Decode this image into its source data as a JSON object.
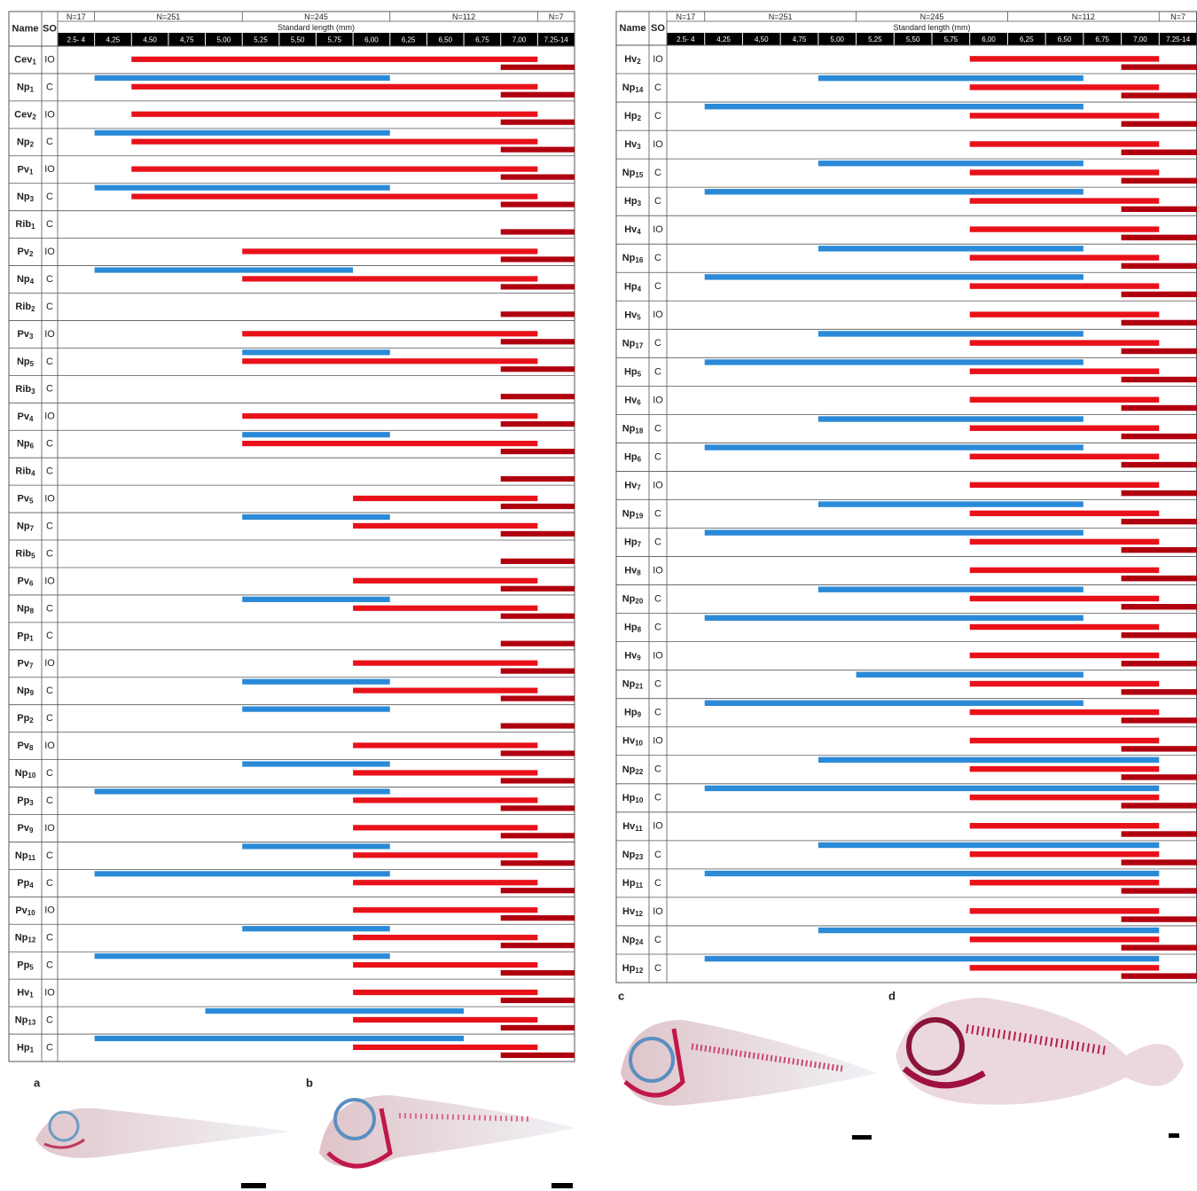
{
  "bar_colors": {
    "blue": "#2b8ad8",
    "red": "#e8111a",
    "dark": "#b0000f"
  },
  "tables": [
    {
      "header": {
        "name": "Name",
        "so": "SO"
      },
      "n_groups": [
        "N=17",
        "N=251",
        "N=245",
        "N=112",
        "N=7"
      ],
      "axis_label": "Standard length (mm)",
      "columns": [
        "2.5- 4",
        "4,25",
        "4,50",
        "4,75",
        "5,00",
        "5,25",
        "5,50",
        "5,75",
        "6,00",
        "6,25",
        "6,50",
        "6,75",
        "7,00",
        "7.25-14"
      ],
      "rows": [
        {
          "name": "Cev",
          "sub": "1",
          "so": "IO",
          "red": [
            2,
            12
          ],
          "dark": [
            12,
            13
          ]
        },
        {
          "name": "Np",
          "sub": "1",
          "so": "C",
          "blue": [
            1,
            8
          ],
          "red": [
            2,
            12
          ],
          "dark": [
            12,
            13
          ]
        },
        {
          "name": "Cev",
          "sub": "2",
          "so": "IO",
          "red": [
            2,
            12
          ],
          "dark": [
            12,
            13
          ]
        },
        {
          "name": "Np",
          "sub": "2",
          "so": "C",
          "blue": [
            1,
            8
          ],
          "red": [
            2,
            12
          ],
          "dark": [
            12,
            13
          ]
        },
        {
          "name": "Pv",
          "sub": "1",
          "so": "IO",
          "red": [
            2,
            12
          ],
          "dark": [
            12,
            13
          ]
        },
        {
          "name": "Np",
          "sub": "3",
          "so": "C",
          "blue": [
            1,
            8
          ],
          "red": [
            2,
            12
          ],
          "dark": [
            12,
            13
          ]
        },
        {
          "name": "Rib",
          "sub": "1",
          "so": "C",
          "dark": [
            12,
            13
          ]
        },
        {
          "name": "Pv",
          "sub": "2",
          "so": "IO",
          "red": [
            5,
            12
          ],
          "dark": [
            12,
            13
          ]
        },
        {
          "name": "Np",
          "sub": "4",
          "so": "C",
          "blue": [
            1,
            7
          ],
          "red": [
            5,
            12
          ],
          "dark": [
            12,
            13
          ]
        },
        {
          "name": "Rib",
          "sub": "2",
          "so": "C",
          "dark": [
            12,
            13
          ]
        },
        {
          "name": "Pv",
          "sub": "3",
          "so": "IO",
          "red": [
            5,
            12
          ],
          "dark": [
            12,
            13
          ]
        },
        {
          "name": "Np",
          "sub": "5",
          "so": "C",
          "blue": [
            5,
            8
          ],
          "red": [
            5,
            12
          ],
          "dark": [
            12,
            13
          ]
        },
        {
          "name": "Rib",
          "sub": "3",
          "so": "C",
          "dark": [
            12,
            13
          ]
        },
        {
          "name": "Pv",
          "sub": "4",
          "so": "IO",
          "red": [
            5,
            12
          ],
          "dark": [
            12,
            13
          ]
        },
        {
          "name": "Np",
          "sub": "6",
          "so": "C",
          "blue": [
            5,
            8
          ],
          "red": [
            5,
            12
          ],
          "dark": [
            12,
            13
          ]
        },
        {
          "name": "Rib",
          "sub": "4",
          "so": "C",
          "dark": [
            12,
            13
          ]
        },
        {
          "name": "Pv",
          "sub": "5",
          "so": "IO",
          "red": [
            8,
            12
          ],
          "dark": [
            12,
            13
          ]
        },
        {
          "name": "Np",
          "sub": "7",
          "so": "C",
          "blue": [
            5,
            8
          ],
          "red": [
            8,
            12
          ],
          "dark": [
            12,
            13
          ]
        },
        {
          "name": "Rib",
          "sub": "5",
          "so": "C",
          "dark": [
            12,
            13
          ]
        },
        {
          "name": "Pv",
          "sub": "6",
          "so": "IO",
          "red": [
            8,
            12
          ],
          "dark": [
            12,
            13
          ]
        },
        {
          "name": "Np",
          "sub": "8",
          "so": "C",
          "blue": [
            5,
            8
          ],
          "red": [
            8,
            12
          ],
          "dark": [
            12,
            13
          ]
        },
        {
          "name": "Pp",
          "sub": "1",
          "so": "C",
          "dark": [
            12,
            13
          ]
        },
        {
          "name": "Pv",
          "sub": "7",
          "so": "IO",
          "red": [
            8,
            12
          ],
          "dark": [
            12,
            13
          ]
        },
        {
          "name": "Np",
          "sub": "9",
          "so": "C",
          "blue": [
            5,
            8
          ],
          "red": [
            8,
            12
          ],
          "dark": [
            12,
            13
          ]
        },
        {
          "name": "Pp",
          "sub": "2",
          "so": "C",
          "blue": [
            5,
            8
          ],
          "dark": [
            12,
            13
          ]
        },
        {
          "name": "Pv",
          "sub": "8",
          "so": "IO",
          "red": [
            8,
            12
          ],
          "dark": [
            12,
            13
          ]
        },
        {
          "name": "Np",
          "sub": "10",
          "so": "C",
          "blue": [
            5,
            8
          ],
          "red": [
            8,
            12
          ],
          "dark": [
            12,
            13
          ]
        },
        {
          "name": "Pp",
          "sub": "3",
          "so": "C",
          "blue": [
            1,
            8
          ],
          "red": [
            8,
            12
          ],
          "dark": [
            12,
            13
          ]
        },
        {
          "name": "Pv",
          "sub": "9",
          "so": "IO",
          "red": [
            8,
            12
          ],
          "dark": [
            12,
            13
          ]
        },
        {
          "name": "Np",
          "sub": "11",
          "so": "C",
          "blue": [
            5,
            8
          ],
          "red": [
            8,
            12
          ],
          "dark": [
            12,
            13
          ]
        },
        {
          "name": "Pp",
          "sub": "4",
          "so": "C",
          "blue": [
            1,
            8
          ],
          "red": [
            8,
            12
          ],
          "dark": [
            12,
            13
          ]
        },
        {
          "name": "Pv",
          "sub": "10",
          "so": "IO",
          "red": [
            8,
            12
          ],
          "dark": [
            12,
            13
          ]
        },
        {
          "name": "Np",
          "sub": "12",
          "so": "C",
          "blue": [
            5,
            8
          ],
          "red": [
            8,
            12
          ],
          "dark": [
            12,
            13
          ]
        },
        {
          "name": "Pp",
          "sub": "5",
          "so": "C",
          "blue": [
            1,
            8
          ],
          "red": [
            8,
            12
          ],
          "dark": [
            12,
            13
          ]
        },
        {
          "name": "Hv",
          "sub": "1",
          "so": "IO",
          "red": [
            8,
            12
          ],
          "dark": [
            12,
            13
          ]
        },
        {
          "name": "Np",
          "sub": "13",
          "so": "C",
          "blue": [
            4,
            10
          ],
          "red": [
            8,
            12
          ],
          "dark": [
            12,
            13
          ]
        },
        {
          "name": "Hp",
          "sub": "1",
          "so": "C",
          "blue": [
            1,
            10
          ],
          "red": [
            8,
            12
          ],
          "dark": [
            12,
            13
          ]
        }
      ]
    },
    {
      "header": {
        "name": "Name",
        "so": "SO"
      },
      "n_groups": [
        "N=17",
        "N=251",
        "N=245",
        "N=112",
        "N=7"
      ],
      "axis_label": "Standard length (mm)",
      "columns": [
        "2.5- 4",
        "4,25",
        "4,50",
        "4,75",
        "5,00",
        "5,25",
        "5,50",
        "5,75",
        "6,00",
        "6,25",
        "6,50",
        "6,75",
        "7,00",
        "7.25-14"
      ],
      "rows": [
        {
          "name": "Hv",
          "sub": "2",
          "so": "IO",
          "red": [
            8,
            12
          ],
          "dark": [
            12,
            13
          ]
        },
        {
          "name": "Np",
          "sub": "14",
          "so": "C",
          "blue": [
            4,
            10
          ],
          "red": [
            8,
            12
          ],
          "dark": [
            12,
            13
          ]
        },
        {
          "name": "Hp",
          "sub": "2",
          "so": "C",
          "blue": [
            1,
            10
          ],
          "red": [
            8,
            12
          ],
          "dark": [
            12,
            13
          ]
        },
        {
          "name": "Hv",
          "sub": "3",
          "so": "IO",
          "red": [
            8,
            12
          ],
          "dark": [
            12,
            13
          ]
        },
        {
          "name": "Np",
          "sub": "15",
          "so": "C",
          "blue": [
            4,
            10
          ],
          "red": [
            8,
            12
          ],
          "dark": [
            12,
            13
          ]
        },
        {
          "name": "Hp",
          "sub": "3",
          "so": "C",
          "blue": [
            1,
            10
          ],
          "red": [
            8,
            12
          ],
          "dark": [
            12,
            13
          ]
        },
        {
          "name": "Hv",
          "sub": "4",
          "so": "IO",
          "red": [
            8,
            12
          ],
          "dark": [
            12,
            13
          ]
        },
        {
          "name": "Np",
          "sub": "16",
          "so": "C",
          "blue": [
            4,
            10
          ],
          "red": [
            8,
            12
          ],
          "dark": [
            12,
            13
          ]
        },
        {
          "name": "Hp",
          "sub": "4",
          "so": "C",
          "blue": [
            1,
            10
          ],
          "red": [
            8,
            12
          ],
          "dark": [
            12,
            13
          ]
        },
        {
          "name": "Hv",
          "sub": "5",
          "so": "IO",
          "red": [
            8,
            12
          ],
          "dark": [
            12,
            13
          ]
        },
        {
          "name": "Np",
          "sub": "17",
          "so": "C",
          "blue": [
            4,
            10
          ],
          "red": [
            8,
            12
          ],
          "dark": [
            12,
            13
          ]
        },
        {
          "name": "Hp",
          "sub": "5",
          "so": "C",
          "blue": [
            1,
            10
          ],
          "red": [
            8,
            12
          ],
          "dark": [
            12,
            13
          ]
        },
        {
          "name": "Hv",
          "sub": "6",
          "so": "IO",
          "red": [
            8,
            12
          ],
          "dark": [
            12,
            13
          ]
        },
        {
          "name": "Np",
          "sub": "18",
          "so": "C",
          "blue": [
            4,
            10
          ],
          "red": [
            8,
            12
          ],
          "dark": [
            12,
            13
          ]
        },
        {
          "name": "Hp",
          "sub": "6",
          "so": "C",
          "blue": [
            1,
            10
          ],
          "red": [
            8,
            12
          ],
          "dark": [
            12,
            13
          ]
        },
        {
          "name": "Hv",
          "sub": "7",
          "so": "IO",
          "red": [
            8,
            12
          ],
          "dark": [
            12,
            13
          ]
        },
        {
          "name": "Np",
          "sub": "19",
          "so": "C",
          "blue": [
            4,
            10
          ],
          "red": [
            8,
            12
          ],
          "dark": [
            12,
            13
          ]
        },
        {
          "name": "Hp",
          "sub": "7",
          "so": "C",
          "blue": [
            1,
            10
          ],
          "red": [
            8,
            12
          ],
          "dark": [
            12,
            13
          ]
        },
        {
          "name": "Hv",
          "sub": "8",
          "so": "IO",
          "red": [
            8,
            12
          ],
          "dark": [
            12,
            13
          ]
        },
        {
          "name": "Np",
          "sub": "20",
          "so": "C",
          "blue": [
            4,
            10
          ],
          "red": [
            8,
            12
          ],
          "dark": [
            12,
            13
          ]
        },
        {
          "name": "Hp",
          "sub": "8",
          "so": "C",
          "blue": [
            1,
            10
          ],
          "red": [
            8,
            12
          ],
          "dark": [
            12,
            13
          ]
        },
        {
          "name": "Hv",
          "sub": "9",
          "so": "IO",
          "red": [
            8,
            12
          ],
          "dark": [
            12,
            13
          ]
        },
        {
          "name": "Np",
          "sub": "21",
          "so": "C",
          "blue": [
            5,
            10
          ],
          "red": [
            8,
            12
          ],
          "dark": [
            12,
            13
          ]
        },
        {
          "name": "Hp",
          "sub": "9",
          "so": "C",
          "blue": [
            1,
            10
          ],
          "red": [
            8,
            12
          ],
          "dark": [
            12,
            13
          ]
        },
        {
          "name": "Hv",
          "sub": "10",
          "so": "IO",
          "red": [
            8,
            12
          ],
          "dark": [
            12,
            13
          ]
        },
        {
          "name": "Np",
          "sub": "22",
          "so": "C",
          "blue": [
            4,
            12
          ],
          "red": [
            8,
            12
          ],
          "dark": [
            12,
            13
          ]
        },
        {
          "name": "Hp",
          "sub": "10",
          "so": "C",
          "blue": [
            1,
            12
          ],
          "red": [
            8,
            12
          ],
          "dark": [
            12,
            13
          ]
        },
        {
          "name": "Hv",
          "sub": "11",
          "so": "IO",
          "red": [
            8,
            12
          ],
          "dark": [
            12,
            13
          ]
        },
        {
          "name": "Np",
          "sub": "23",
          "so": "C",
          "blue": [
            4,
            12
          ],
          "red": [
            8,
            12
          ],
          "dark": [
            12,
            13
          ]
        },
        {
          "name": "Hp",
          "sub": "11",
          "so": "C",
          "blue": [
            1,
            12
          ],
          "red": [
            8,
            12
          ],
          "dark": [
            12,
            13
          ]
        },
        {
          "name": "Hv",
          "sub": "12",
          "so": "IO",
          "red": [
            8,
            12
          ],
          "dark": [
            12,
            13
          ]
        },
        {
          "name": "Np",
          "sub": "24",
          "so": "C",
          "blue": [
            4,
            12
          ],
          "red": [
            8,
            12
          ],
          "dark": [
            12,
            13
          ]
        },
        {
          "name": "Hp",
          "sub": "12",
          "so": "C",
          "blue": [
            1,
            12
          ],
          "red": [
            8,
            12
          ],
          "dark": [
            12,
            13
          ]
        }
      ]
    }
  ],
  "panels": [
    "a",
    "b",
    "c",
    "d"
  ]
}
